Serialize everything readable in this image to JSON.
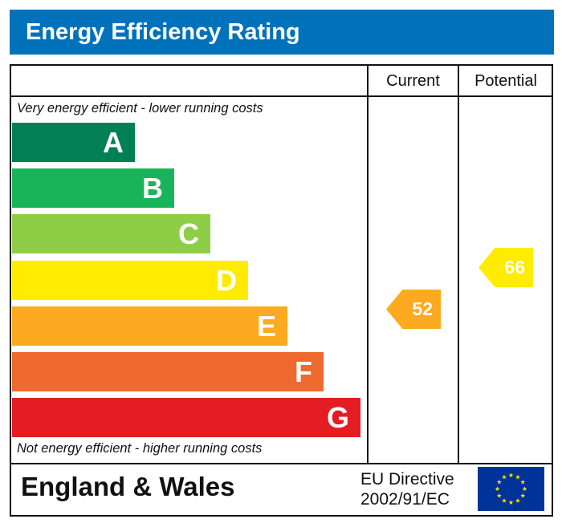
{
  "title": "Energy Efficiency Rating",
  "columns": {
    "current": "Current",
    "potential": "Potential"
  },
  "top_note": "Very energy efficient - lower running costs",
  "bottom_note": "Not energy efficient - higher running costs",
  "footer": {
    "region": "England & Wales",
    "directive_line1": "EU Directive",
    "directive_line2": "2002/91/EC",
    "flag": "eu-flag-icon"
  },
  "chart_data": {
    "type": "bar",
    "categories": [
      "A",
      "B",
      "C",
      "D",
      "E",
      "F",
      "G"
    ],
    "colors": [
      "#008054",
      "#19b459",
      "#8dce46",
      "#ffec00",
      "#fcaa1f",
      "#ef6a2f",
      "#e31d23"
    ],
    "current": {
      "value": 52,
      "band": "E",
      "color": "#fcaa1f"
    },
    "potential": {
      "value": 66,
      "band": "D",
      "color": "#ffec00"
    }
  }
}
